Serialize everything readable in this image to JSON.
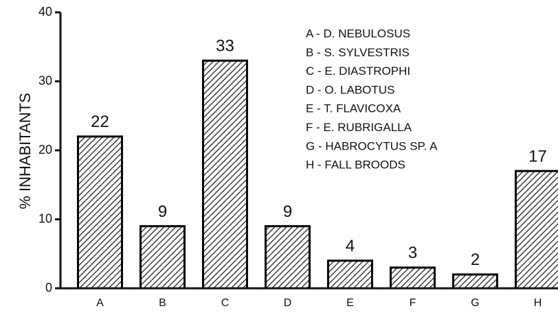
{
  "chart_data": {
    "type": "bar",
    "ylabel": "% INHABITANTS",
    "categories": [
      "A",
      "B",
      "C",
      "D",
      "E",
      "F",
      "G",
      "H"
    ],
    "values": [
      22,
      9,
      33,
      9,
      4,
      3,
      2,
      17
    ],
    "color": "#000000",
    "ylim": [
      0,
      40
    ],
    "yticks": [
      0,
      10,
      20,
      30,
      40
    ],
    "annotations": [
      "A - D. NEBULOSUS",
      "B - S. SYLVESTRIS",
      "C - E. DIASTROPHI",
      "D - O. LABOTUS",
      "E - T. FLAVICOXA",
      "F - E. RUBRIGALLA",
      "G - HABROCYTUS SP. A",
      "H - FALL BROODS"
    ]
  }
}
